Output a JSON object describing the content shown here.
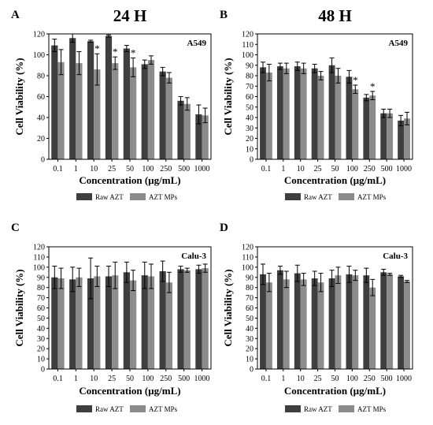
{
  "legend": {
    "series": [
      "Raw AZT",
      "AZT MPs"
    ],
    "colors": [
      "#3f3f3f",
      "#8c8c8c"
    ]
  },
  "chart_data": [
    {
      "type": "bar",
      "panel_letter": "A",
      "title": "24 H",
      "cell_line": "A549",
      "xlabel": "Concentration (µg/mL)",
      "ylabel": "Cell Viability (%)",
      "ylim": [
        0,
        120
      ],
      "yticks": [
        0,
        20,
        40,
        60,
        80,
        100,
        120
      ],
      "categories": [
        "0.1",
        "1",
        "10",
        "25",
        "50",
        "100",
        "250",
        "500",
        "1000"
      ],
      "series": [
        {
          "name": "Raw AZT",
          "values": [
            109,
            116,
            113,
            118,
            106,
            91,
            84,
            56,
            43
          ],
          "errors": [
            6,
            4,
            1,
            1,
            3,
            4,
            4,
            4,
            9
          ]
        },
        {
          "name": "AZT MPs",
          "values": [
            93,
            92,
            86,
            92,
            88,
            95,
            78,
            53,
            42
          ],
          "errors": [
            12,
            11,
            15,
            6,
            9,
            4,
            5,
            6,
            7
          ]
        }
      ],
      "significance": [
        "",
        "",
        "*",
        "*",
        "*",
        "",
        "",
        "",
        ""
      ],
      "grid": false,
      "legend": "below"
    },
    {
      "type": "bar",
      "panel_letter": "B",
      "title": "48 H",
      "cell_line": "A549",
      "xlabel": "Concentration (µg/mL)",
      "ylabel": "Cell Viability (%)",
      "ylim": [
        0,
        120
      ],
      "yticks": [
        0,
        10,
        20,
        30,
        40,
        50,
        60,
        70,
        80,
        90,
        100,
        110,
        120
      ],
      "categories": [
        "0.1",
        "1",
        "10",
        "25",
        "50",
        "100",
        "250",
        "500",
        "1000"
      ],
      "series": [
        {
          "name": "Raw AZT",
          "values": [
            88,
            89,
            89,
            87,
            90,
            79,
            59,
            44,
            37
          ],
          "errors": [
            5,
            3,
            4,
            4,
            7,
            6,
            3,
            4,
            5
          ]
        },
        {
          "name": "AZT MPs",
          "values": [
            83,
            87,
            87,
            80,
            80,
            67,
            61,
            44,
            39
          ],
          "errors": [
            8,
            5,
            5,
            4,
            7,
            4,
            4,
            4,
            6
          ]
        }
      ],
      "significance": [
        "",
        "",
        "",
        "",
        "",
        "*",
        "*",
        "",
        ""
      ],
      "grid": false,
      "legend": "below"
    },
    {
      "type": "bar",
      "panel_letter": "C",
      "title": "",
      "cell_line": "Calu-3",
      "xlabel": "Concentration (µg/mL)",
      "ylabel": "Cell Viability (%)",
      "ylim": [
        0,
        120
      ],
      "yticks": [
        0,
        10,
        20,
        30,
        40,
        50,
        60,
        70,
        80,
        90,
        100,
        110,
        120
      ],
      "categories": [
        "0.1",
        "1",
        "10",
        "25",
        "50",
        "100",
        "250",
        "500",
        "1000"
      ],
      "series": [
        {
          "name": "Raw AZT",
          "values": [
            90,
            88,
            89,
            91,
            95,
            92,
            96,
            98,
            98
          ],
          "errors": [
            11,
            12,
            20,
            10,
            10,
            13,
            10,
            3,
            4
          ]
        },
        {
          "name": "AZT MPs",
          "values": [
            89,
            90,
            91,
            92,
            87,
            91,
            85,
            97,
            99
          ],
          "errors": [
            10,
            9,
            10,
            13,
            10,
            12,
            10,
            2,
            4
          ]
        }
      ],
      "significance": [
        "",
        "",
        "",
        "",
        "",
        "",
        "",
        "",
        ""
      ],
      "grid": false,
      "legend": "below"
    },
    {
      "type": "bar",
      "panel_letter": "D",
      "title": "",
      "cell_line": "Calu-3",
      "xlabel": "Concentration (µg/mL)",
      "ylabel": "Cell Viability (%)",
      "ylim": [
        0,
        120
      ],
      "yticks": [
        0,
        10,
        20,
        30,
        40,
        50,
        60,
        70,
        80,
        90,
        100,
        110,
        120
      ],
      "categories": [
        "0.1",
        "1",
        "10",
        "25",
        "50",
        "100",
        "250",
        "500",
        "1000"
      ],
      "series": [
        {
          "name": "Raw AZT",
          "values": [
            93,
            97,
            94,
            89,
            89,
            93,
            92,
            95,
            91
          ],
          "errors": [
            10,
            4,
            8,
            7,
            8,
            8,
            7,
            3,
            1
          ]
        },
        {
          "name": "AZT MPs",
          "values": [
            85,
            88,
            88,
            85,
            92,
            92,
            80,
            93,
            86
          ],
          "errors": [
            9,
            8,
            6,
            9,
            8,
            5,
            8,
            1,
            1
          ]
        }
      ],
      "significance": [
        "",
        "",
        "",
        "",
        "",
        "",
        "",
        "",
        ""
      ],
      "grid": false,
      "legend": "below"
    }
  ]
}
